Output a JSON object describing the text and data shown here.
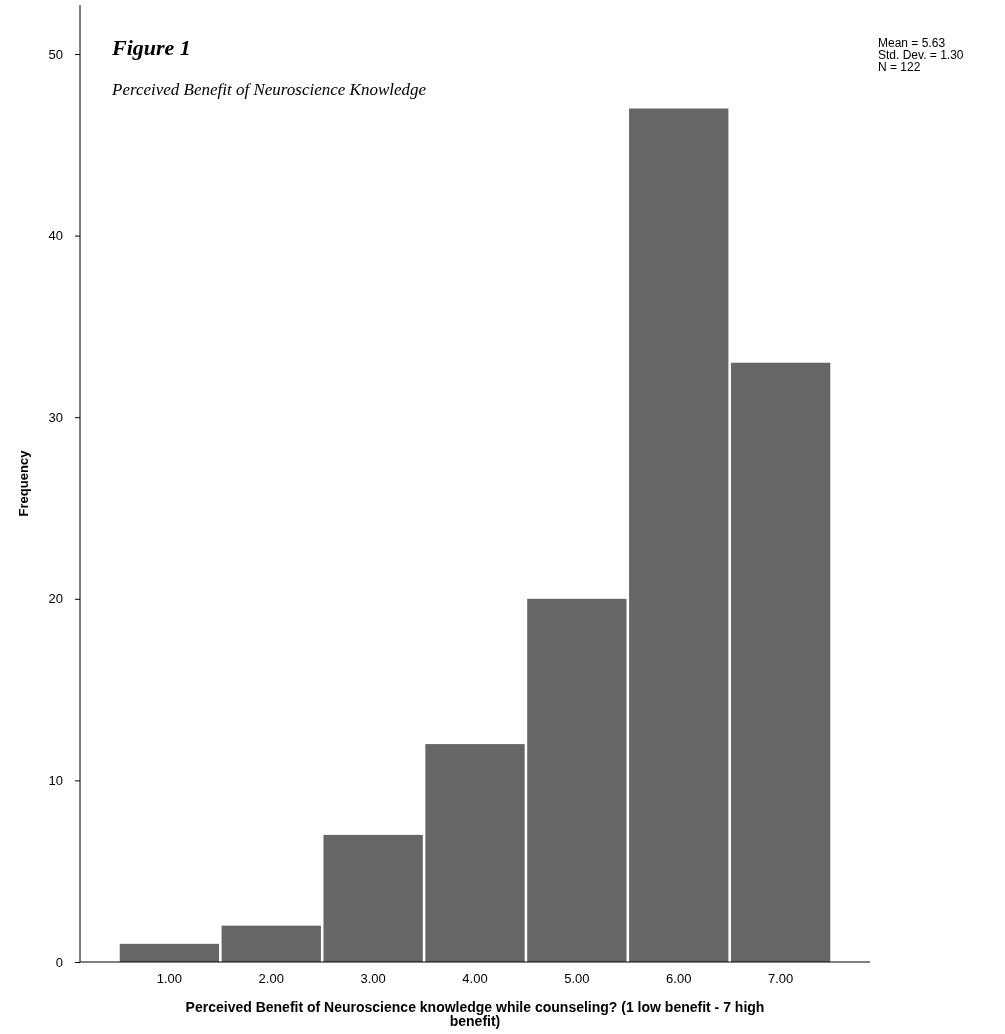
{
  "chart_data": {
    "type": "bar",
    "title": "Figure 1",
    "subtitle": "Perceived Benefit of Neuroscience Knowledge",
    "xlabel": "Perceived Benefit of Neuroscience knowledge while counseling? (1 low benefit - 7 high benefit)",
    "ylabel": "Frequency",
    "categories": [
      "1.00",
      "2.00",
      "3.00",
      "4.00",
      "5.00",
      "6.00",
      "7.00"
    ],
    "values": [
      1,
      2,
      7,
      12,
      20,
      47,
      33
    ],
    "color": "#666666",
    "ylim": [
      0,
      52.7
    ],
    "yticks": [
      0,
      10,
      20,
      30,
      40,
      50
    ],
    "annotations": [
      "Mean = 5.63",
      "Std. Dev. = 1.30",
      "N = 122"
    ]
  }
}
